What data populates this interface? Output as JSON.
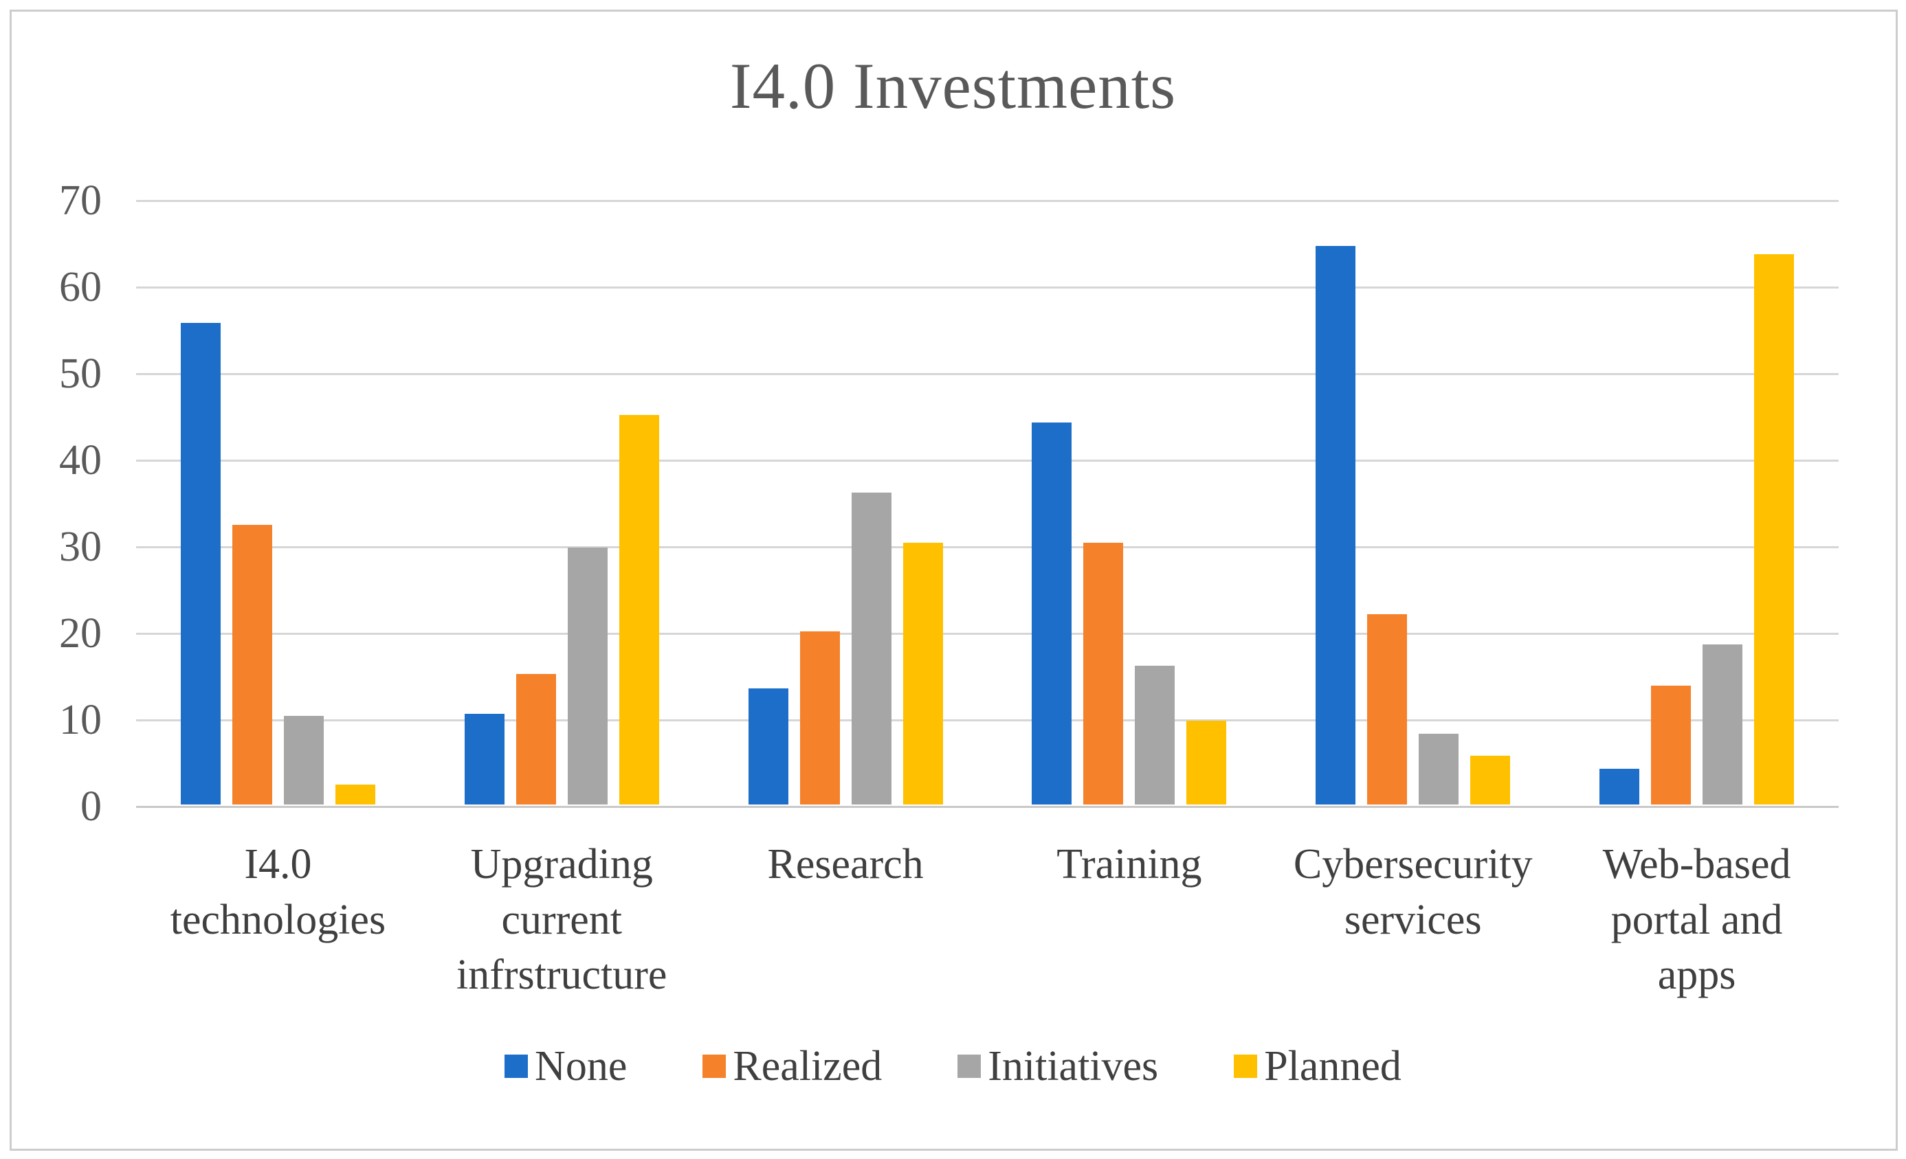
{
  "chart_data": {
    "type": "bar",
    "title": "I4.0 Investments",
    "categories": [
      "I4.0\ntechnologies",
      "Upgrading\ncurrent\ninfrstructure",
      "Research",
      "Training",
      "Cybersecurity\nservices",
      "Web-based\nportal and\napps"
    ],
    "series": [
      {
        "name": "None",
        "color": "#1C6EC8",
        "values": [
          55.6,
          10.5,
          13.4,
          44.1,
          64.5,
          4.1
        ]
      },
      {
        "name": "Realized",
        "color": "#F5812B",
        "values": [
          32.3,
          15.1,
          20.0,
          30.2,
          22.0,
          13.7
        ]
      },
      {
        "name": "Initiatives",
        "color": "#A6A6A6",
        "values": [
          10.2,
          29.7,
          36.0,
          16.0,
          8.2,
          18.5
        ]
      },
      {
        "name": "Planned",
        "color": "#FFC000",
        "values": [
          2.3,
          45.0,
          30.2,
          9.7,
          5.6,
          63.6
        ]
      }
    ],
    "ylim": [
      0,
      70
    ],
    "yticks": [
      0,
      10,
      20,
      30,
      40,
      50,
      60,
      70
    ],
    "xlabel": "",
    "ylabel": "",
    "grid": "horizontal",
    "legend_position": "bottom",
    "legend": [
      "None",
      "Realized",
      "Initiatives",
      "Planned"
    ]
  },
  "style": {
    "background": "#FFFFFF",
    "border_color": "#CDCDCD",
    "gridline_color": "#D6D6D6",
    "axis_line_color": "#C9C9C9",
    "title_color": "#595959",
    "tick_label_color": "#595959",
    "category_label_color": "#3F3F3F",
    "legend_label_color": "#3F3F3F"
  }
}
